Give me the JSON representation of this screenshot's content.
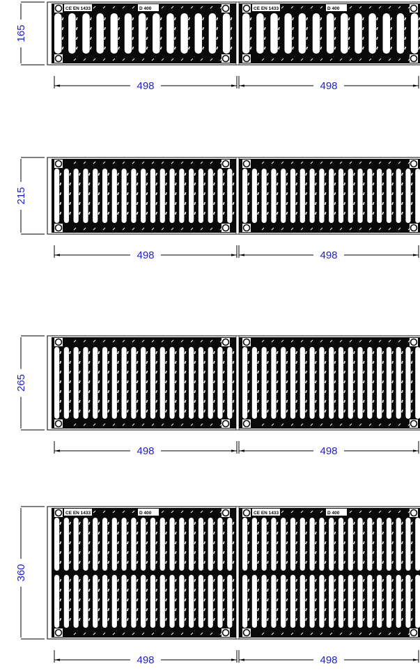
{
  "colors": {
    "grate": "#0a0a0a",
    "slot": "#ffffff",
    "dimension_text": "#1f1fd0",
    "line": "#000000"
  },
  "units": "mm",
  "grates": [
    {
      "id": "grate-165",
      "width_label": "165",
      "segments": [
        {
          "length_label": "498",
          "marking_ce": "CE EN 1433",
          "marking_class": "D 400"
        },
        {
          "length_label": "498",
          "marking_ce": "CE EN 1433",
          "marking_class": "D 400"
        }
      ],
      "rows": 1,
      "slots_per_segment": 13
    },
    {
      "id": "grate-215",
      "width_label": "215",
      "segments": [
        {
          "length_label": "498",
          "marking_ce": "",
          "marking_class": ""
        },
        {
          "length_label": "498",
          "marking_ce": "",
          "marking_class": ""
        }
      ],
      "rows": 1,
      "slots_per_segment": 19
    },
    {
      "id": "grate-265",
      "width_label": "265",
      "segments": [
        {
          "length_label": "498",
          "marking_ce": "",
          "marking_class": ""
        },
        {
          "length_label": "498",
          "marking_ce": "",
          "marking_class": ""
        }
      ],
      "rows": 1,
      "slots_per_segment": 19
    },
    {
      "id": "grate-360",
      "width_label": "360",
      "segments": [
        {
          "length_label": "498",
          "marking_ce": "CE EN 1433",
          "marking_class": "D 400"
        },
        {
          "length_label": "498",
          "marking_ce": "CE EN 1433",
          "marking_class": "D 400"
        }
      ],
      "rows": 2,
      "slots_per_segment": 19
    }
  ]
}
